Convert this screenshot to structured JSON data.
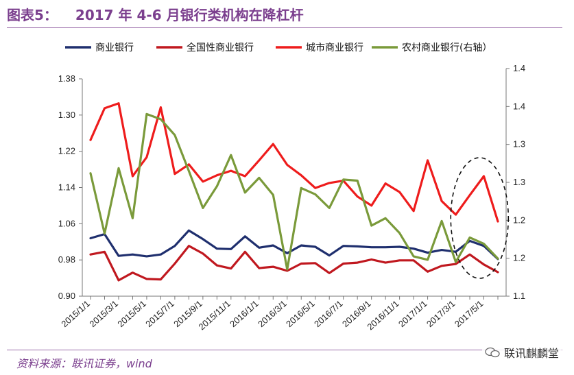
{
  "figure": {
    "label": "图表5：",
    "title": "2017 年 4-6 月银行类机构在降杠杆",
    "source": "资料来源：联讯证券，wind",
    "watermark": "联讯麒麟堂"
  },
  "chart_data": {
    "type": "line",
    "x": [
      "2015/1/1",
      "2015/2/1",
      "2015/3/1",
      "2015/4/1",
      "2015/5/1",
      "2015/6/1",
      "2015/7/1",
      "2015/8/1",
      "2015/9/1",
      "2015/10/1",
      "2015/11/1",
      "2015/12/1",
      "2016/1/1",
      "2016/2/1",
      "2016/3/1",
      "2016/4/1",
      "2016/5/1",
      "2016/6/1",
      "2016/7/1",
      "2016/8/1",
      "2016/9/1",
      "2016/10/1",
      "2016/11/1",
      "2016/12/1",
      "2017/1/1",
      "2017/2/1",
      "2017/3/1",
      "2017/4/1",
      "2017/5/1",
      "2017/6/1"
    ],
    "x_tick_labels": [
      "2015/1/1",
      "2015/3/1",
      "2015/5/1",
      "2015/7/1",
      "2015/9/1",
      "2015/11/1",
      "2016/1/1",
      "2016/3/1",
      "2016/5/1",
      "2016/7/1",
      "2016/9/1",
      "2016/11/1",
      "2017/1/1",
      "2017/3/1",
      "2017/5/1"
    ],
    "ylim": [
      0.9,
      1.38
    ],
    "y_ticks": [
      "0.90",
      "0.98",
      "1.06",
      "1.14",
      "1.22",
      "1.30",
      "1.38"
    ],
    "y2lim": [
      1.1,
      1.5
    ],
    "y2_ticks": [
      "1.1",
      "1.2",
      "1.2",
      "1.3",
      "1.3",
      "1.4",
      "1.4"
    ],
    "grid": false,
    "legend_position": "top",
    "series": [
      {
        "name": "商业银行",
        "color": "#1f2f6e",
        "axis": "left",
        "values": [
          1.028,
          1.037,
          0.989,
          0.992,
          0.988,
          0.992,
          1.011,
          1.045,
          1.026,
          1.005,
          1.004,
          1.032,
          1.007,
          1.012,
          0.995,
          1.012,
          1.009,
          0.99,
          1.011,
          1.01,
          1.008,
          1.008,
          1.009,
          1.005,
          0.996,
          1.002,
          0.998,
          1.022,
          1.011,
          0.982
        ]
      },
      {
        "name": "全国性商业银行",
        "color": "#c0181f",
        "axis": "left",
        "values": [
          0.992,
          0.998,
          0.935,
          0.952,
          0.938,
          0.937,
          0.972,
          1.011,
          0.994,
          0.968,
          0.961,
          0.998,
          0.962,
          0.965,
          0.956,
          0.972,
          0.973,
          0.951,
          0.972,
          0.974,
          0.981,
          0.974,
          0.979,
          0.979,
          0.954,
          0.967,
          0.971,
          0.992,
          0.97,
          0.953
        ]
      },
      {
        "name": "城市商业银行",
        "color": "#ee1c1c",
        "axis": "left",
        "values": [
          1.245,
          1.315,
          1.326,
          1.165,
          1.207,
          1.317,
          1.17,
          1.191,
          1.153,
          1.167,
          1.177,
          1.165,
          1.2,
          1.236,
          1.19,
          1.167,
          1.139,
          1.15,
          1.155,
          1.12,
          1.1,
          1.149,
          1.13,
          1.088,
          1.2,
          1.11,
          1.08,
          1.123,
          1.165,
          1.065
        ]
      },
      {
        "name": "农村商业银行(右轴）",
        "color": "#7a9a3a",
        "axis": "right",
        "values": [
          1.316,
          1.21,
          1.325,
          1.237,
          1.42,
          1.411,
          1.383,
          1.32,
          1.255,
          1.293,
          1.348,
          1.282,
          1.308,
          1.278,
          1.147,
          1.29,
          1.279,
          1.255,
          1.305,
          1.303,
          1.224,
          1.237,
          1.211,
          1.17,
          1.164,
          1.232,
          1.16,
          1.203,
          1.192,
          1.166
        ]
      }
    ],
    "annotation": "dashed-ellipse-highlight-2017-04-to-2017-06"
  }
}
